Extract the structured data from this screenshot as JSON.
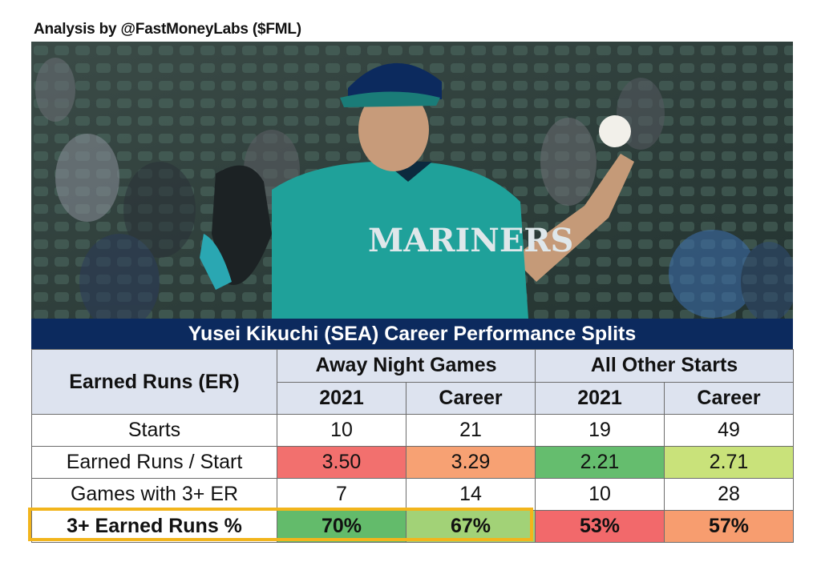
{
  "credit": "Analysis by @FastMoneyLabs ($FML)",
  "photo": {
    "jersey_text": "MARINERS"
  },
  "table": {
    "title": "Yusei Kikuchi (SEA) Career Performance Splits",
    "row_header": "Earned Runs (ER)",
    "groups": [
      "Away Night Games",
      "All Other Starts"
    ],
    "subheaders": [
      "2021",
      "Career",
      "2021",
      "Career"
    ],
    "rows": [
      {
        "label": "Starts",
        "values": [
          "10",
          "21",
          "19",
          "49"
        ],
        "colors": [
          "#ffffff",
          "#ffffff",
          "#ffffff",
          "#ffffff"
        ]
      },
      {
        "label": "Earned Runs / Start",
        "values": [
          "3.50",
          "3.29",
          "2.21",
          "2.71"
        ],
        "colors": [
          "#f2706e",
          "#f7a173",
          "#65bd6e",
          "#c9e27a"
        ]
      },
      {
        "label": "Games with 3+ ER",
        "values": [
          "7",
          "14",
          "10",
          "28"
        ],
        "colors": [
          "#ffffff",
          "#ffffff",
          "#ffffff",
          "#ffffff"
        ]
      },
      {
        "label": "3+ Earned Runs %",
        "values": [
          "70%",
          "67%",
          "53%",
          "57%"
        ],
        "colors": [
          "#63bb6b",
          "#a2d277",
          "#f2696b",
          "#f79d6f"
        ]
      }
    ]
  }
}
